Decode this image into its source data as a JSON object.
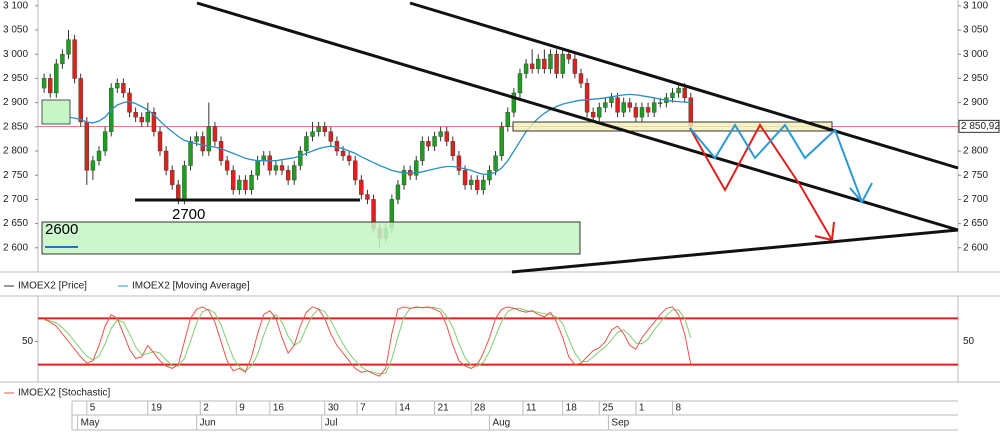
{
  "chart_data": [
    {
      "type": "candlestick",
      "xlim": [
        -1,
        149.8
      ],
      "ylim": [
        2550,
        3112
      ],
      "yticks": [
        {
          "value": 3100,
          "label": "3 100"
        },
        {
          "value": 3050,
          "label": "3 050"
        },
        {
          "value": 3000,
          "label": "3 000"
        },
        {
          "value": 2950,
          "label": "2 950"
        },
        {
          "value": 2900,
          "label": "2 900"
        },
        {
          "value": 2850,
          "label": "2 850"
        },
        {
          "value": 2800,
          "label": "2 800"
        },
        {
          "value": 2750,
          "label": "2 750"
        },
        {
          "value": 2700,
          "label": "2 700"
        },
        {
          "value": 2650,
          "label": "2 650"
        },
        {
          "value": 2600,
          "label": "2 600"
        }
      ],
      "last_price": {
        "value": 2850.92,
        "label": "2 850,92"
      },
      "xticks": [
        {
          "value": 7,
          "label": "5"
        },
        {
          "value": 17,
          "label": "19"
        },
        {
          "value": 25.6,
          "label": "2"
        },
        {
          "value": 31.5,
          "label": "9"
        },
        {
          "value": 37,
          "label": "16"
        },
        {
          "value": 46,
          "label": "30"
        },
        {
          "value": 51.3,
          "label": "7"
        },
        {
          "value": 57.7,
          "label": "14"
        },
        {
          "value": 64,
          "label": "21"
        },
        {
          "value": 70,
          "label": "28"
        },
        {
          "value": 78.5,
          "label": "11"
        },
        {
          "value": 85,
          "label": "18"
        },
        {
          "value": 91,
          "label": "25"
        },
        {
          "value": 97,
          "label": "1"
        },
        {
          "value": 103,
          "label": "8"
        }
      ],
      "month_ticks": [
        {
          "value": 5.5,
          "label": "May"
        },
        {
          "value": 25,
          "label": "Jun"
        },
        {
          "value": 45.5,
          "label": "Jul"
        },
        {
          "value": 73,
          "label": "Aug"
        },
        {
          "value": 92.5,
          "label": "Sep"
        }
      ],
      "annotations": [
        "2700",
        "2600"
      ],
      "series": [
        {
          "name": "IMOEX2 [Price]",
          "color": "#333333",
          "up_color": "#1e9e1e",
          "down_color": "#e0201c",
          "open": [
            2930,
            2950,
            2920,
            2980,
            3000,
            3030,
            2950,
            2860,
            2760,
            2780,
            2800,
            2840,
            2930,
            2940,
            2920,
            2880,
            2870,
            2860,
            2880,
            2840,
            2800,
            2760,
            2730,
            2700,
            2770,
            2820,
            2830,
            2800,
            2850,
            2820,
            2780,
            2760,
            2720,
            2740,
            2720,
            2750,
            2780,
            2790,
            2760,
            2770,
            2760,
            2740,
            2770,
            2800,
            2830,
            2840,
            2850,
            2840,
            2820,
            2800,
            2790,
            2780,
            2740,
            2710,
            2700,
            2640,
            2620,
            2640,
            2700,
            2730,
            2760,
            2750,
            2780,
            2820,
            2810,
            2830,
            2840,
            2820,
            2790,
            2760,
            2730,
            2740,
            2720,
            2740,
            2760,
            2790,
            2850,
            2880,
            2920,
            2960,
            2980,
            2970,
            2990,
            2970,
            3000,
            2960,
            3000,
            2990,
            2960,
            2940,
            2880,
            2870,
            2890,
            2900,
            2910,
            2880,
            2900,
            2890,
            2870,
            2890,
            2880,
            2900,
            2900,
            2910,
            2920,
            2930,
            2910
          ],
          "high": [
            2960,
            2960,
            2990,
            3010,
            3050,
            3040,
            2960,
            2870,
            2790,
            2810,
            2850,
            2940,
            2950,
            2950,
            2930,
            2890,
            2880,
            2900,
            2890,
            2850,
            2810,
            2770,
            2740,
            2780,
            2830,
            2840,
            2840,
            2900,
            2860,
            2830,
            2790,
            2770,
            2750,
            2750,
            2760,
            2790,
            2800,
            2800,
            2780,
            2780,
            2770,
            2780,
            2810,
            2840,
            2860,
            2860,
            2860,
            2850,
            2830,
            2810,
            2800,
            2790,
            2750,
            2720,
            2710,
            2650,
            2650,
            2710,
            2740,
            2770,
            2770,
            2790,
            2830,
            2830,
            2840,
            2850,
            2850,
            2830,
            2800,
            2770,
            2750,
            2750,
            2750,
            2770,
            2800,
            2860,
            2890,
            2930,
            2970,
            2990,
            3010,
            3000,
            3010,
            3010,
            3010,
            3010,
            3010,
            3000,
            2970,
            2950,
            2890,
            2900,
            2910,
            2920,
            2920,
            2910,
            2910,
            2900,
            2900,
            2900,
            2910,
            2910,
            2920,
            2930,
            2940,
            2940,
            2920
          ],
          "low": [
            2920,
            2910,
            2910,
            2970,
            2990,
            2940,
            2850,
            2730,
            2740,
            2770,
            2790,
            2830,
            2920,
            2910,
            2870,
            2860,
            2850,
            2850,
            2830,
            2790,
            2750,
            2720,
            2690,
            2690,
            2760,
            2810,
            2790,
            2790,
            2810,
            2770,
            2750,
            2710,
            2710,
            2710,
            2710,
            2740,
            2770,
            2750,
            2750,
            2750,
            2730,
            2730,
            2760,
            2790,
            2820,
            2830,
            2830,
            2810,
            2790,
            2780,
            2770,
            2730,
            2700,
            2690,
            2630,
            2600,
            2610,
            2630,
            2690,
            2720,
            2740,
            2740,
            2770,
            2800,
            2800,
            2820,
            2810,
            2780,
            2750,
            2720,
            2720,
            2710,
            2710,
            2730,
            2750,
            2780,
            2840,
            2870,
            2910,
            2950,
            2960,
            2960,
            2960,
            2960,
            2950,
            2950,
            2980,
            2950,
            2930,
            2870,
            2860,
            2860,
            2880,
            2890,
            2870,
            2870,
            2880,
            2860,
            2860,
            2870,
            2870,
            2890,
            2890,
            2900,
            2910,
            2900,
            2840
          ],
          "close": [
            2950,
            2920,
            2980,
            3000,
            3030,
            2950,
            2860,
            2760,
            2780,
            2800,
            2840,
            2930,
            2940,
            2920,
            2880,
            2870,
            2860,
            2880,
            2840,
            2800,
            2760,
            2730,
            2700,
            2770,
            2820,
            2830,
            2800,
            2850,
            2820,
            2780,
            2760,
            2720,
            2740,
            2720,
            2750,
            2780,
            2790,
            2760,
            2770,
            2760,
            2740,
            2770,
            2800,
            2830,
            2840,
            2850,
            2840,
            2820,
            2800,
            2790,
            2780,
            2740,
            2710,
            2700,
            2640,
            2620,
            2640,
            2700,
            2730,
            2760,
            2750,
            2780,
            2820,
            2810,
            2830,
            2840,
            2820,
            2790,
            2760,
            2730,
            2740,
            2720,
            2740,
            2760,
            2790,
            2850,
            2880,
            2920,
            2960,
            2980,
            2970,
            2990,
            2970,
            3000,
            2960,
            3000,
            2990,
            2960,
            2940,
            2880,
            2870,
            2890,
            2900,
            2910,
            2880,
            2900,
            2890,
            2870,
            2890,
            2880,
            2900,
            2900,
            2910,
            2920,
            2930,
            2910,
            2850.92
          ]
        },
        {
          "name": "IMOEX2 [Moving Average]",
          "color": "#2a8fc4",
          "values": [
            2880,
            2878,
            2875,
            2872,
            2870,
            2868,
            2865,
            2860,
            2858,
            2862,
            2870,
            2885,
            2895,
            2900,
            2902,
            2898,
            2892,
            2885,
            2875,
            2862,
            2850,
            2840,
            2830,
            2822,
            2818,
            2815,
            2812,
            2810,
            2808,
            2805,
            2800,
            2795,
            2790,
            2785,
            2782,
            2780,
            2780,
            2780,
            2780,
            2782,
            2784,
            2786,
            2790,
            2795,
            2800,
            2805,
            2808,
            2810,
            2808,
            2805,
            2800,
            2795,
            2788,
            2782,
            2776,
            2770,
            2765,
            2760,
            2757,
            2755,
            2754,
            2755,
            2757,
            2760,
            2763,
            2766,
            2768,
            2768,
            2766,
            2763,
            2760,
            2755,
            2752,
            2752,
            2756,
            2765,
            2780,
            2800,
            2820,
            2840,
            2855,
            2868,
            2878,
            2886,
            2892,
            2897,
            2900,
            2903,
            2905,
            2906,
            2907,
            2908,
            2910,
            2912,
            2914,
            2916,
            2917,
            2916,
            2914,
            2912,
            2910,
            2907,
            2905,
            2903,
            2902,
            2901,
            2900
          ]
        }
      ]
    },
    {
      "type": "line",
      "ylim": [
        0,
        100
      ],
      "yticks": [
        50
      ],
      "levels": [
        80,
        20
      ],
      "level_color": "#e0201c",
      "series": [
        {
          "name": "IMOEX2 [Stochastic]",
          "color": "#e8554e",
          "values": [
            80,
            75,
            70,
            60,
            50,
            40,
            30,
            22,
            25,
            45,
            70,
            85,
            80,
            60,
            40,
            28,
            30,
            45,
            35,
            25,
            18,
            15,
            20,
            50,
            80,
            92,
            95,
            90,
            75,
            50,
            25,
            12,
            15,
            10,
            30,
            60,
            85,
            90,
            80,
            55,
            35,
            45,
            70,
            88,
            95,
            92,
            80,
            60,
            45,
            35,
            25,
            15,
            10,
            12,
            8,
            5,
            15,
            60,
            92,
            95,
            93,
            95,
            94,
            95,
            92,
            88,
            70,
            45,
            25,
            18,
            15,
            20,
            35,
            55,
            80,
            92,
            95,
            93,
            90,
            88,
            90,
            85,
            82,
            88,
            75,
            55,
            30,
            20,
            22,
            30,
            38,
            42,
            50,
            65,
            70,
            60,
            45,
            40,
            55,
            65,
            75,
            85,
            93,
            95,
            85,
            60,
            20
          ]
        },
        {
          "color": "#7ccf6b",
          "values": [
            78,
            77,
            74,
            68,
            60,
            50,
            40,
            31,
            26,
            31,
            47,
            67,
            78,
            75,
            60,
            43,
            33,
            34,
            37,
            35,
            26,
            19,
            18,
            28,
            50,
            74,
            89,
            92,
            87,
            72,
            50,
            29,
            17,
            12,
            18,
            33,
            58,
            78,
            85,
            75,
            57,
            45,
            50,
            68,
            84,
            92,
            89,
            77,
            62,
            47,
            35,
            25,
            17,
            12,
            10,
            8,
            9,
            27,
            56,
            82,
            93,
            94,
            94,
            94,
            94,
            92,
            83,
            68,
            47,
            29,
            19,
            18,
            23,
            37,
            57,
            76,
            89,
            93,
            93,
            90,
            89,
            88,
            86,
            85,
            82,
            73,
            53,
            35,
            24,
            24,
            30,
            37,
            43,
            52,
            62,
            65,
            58,
            48,
            47,
            53,
            65,
            75,
            84,
            91,
            91,
            80,
            55
          ]
        }
      ]
    }
  ]
}
